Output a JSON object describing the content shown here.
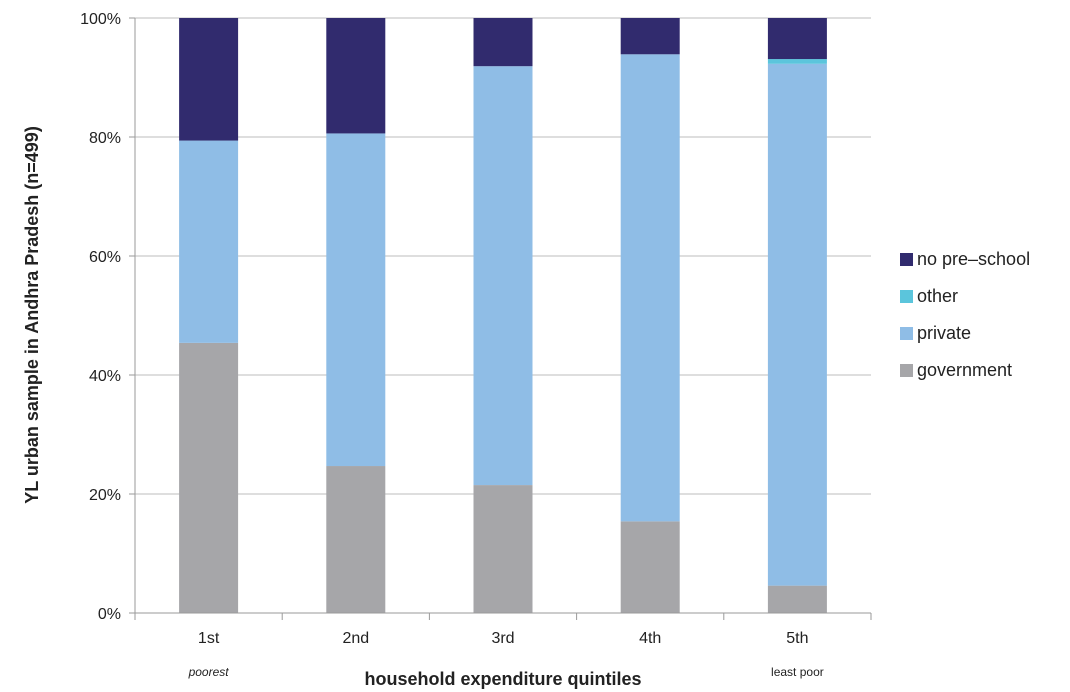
{
  "chart_data": {
    "type": "bar",
    "stacked": true,
    "title": "",
    "xlabel": "household expenditure quintiles",
    "ylabel": "YL urban sample in Andhra Pradesh (n=499)",
    "ylim": [
      0,
      100
    ],
    "y_ticks": [
      "0%",
      "20%",
      "40%",
      "60%",
      "80%",
      "100%"
    ],
    "categories": [
      "1st",
      "2nd",
      "3rd",
      "4th",
      "5th"
    ],
    "category_sublabels": [
      "poorest",
      "",
      "",
      "",
      "least poor"
    ],
    "grid": true,
    "legend_position": "right",
    "series": [
      {
        "name": "government",
        "color": "#a6a6a9",
        "values": [
          45.4,
          24.7,
          21.5,
          15.4,
          4.6
        ]
      },
      {
        "name": "private",
        "color": "#8fbde6",
        "values": [
          34.0,
          55.9,
          70.4,
          78.5,
          87.7
        ]
      },
      {
        "name": "other",
        "color": "#5bc5dc",
        "values": [
          0,
          0,
          0,
          0,
          0.8
        ]
      },
      {
        "name": "no pre–school",
        "color": "#312b6e",
        "values": [
          20.6,
          19.4,
          8.1,
          6.1,
          6.9
        ]
      }
    ],
    "legend_order": [
      "no pre–school",
      "other",
      "private",
      "government"
    ]
  }
}
